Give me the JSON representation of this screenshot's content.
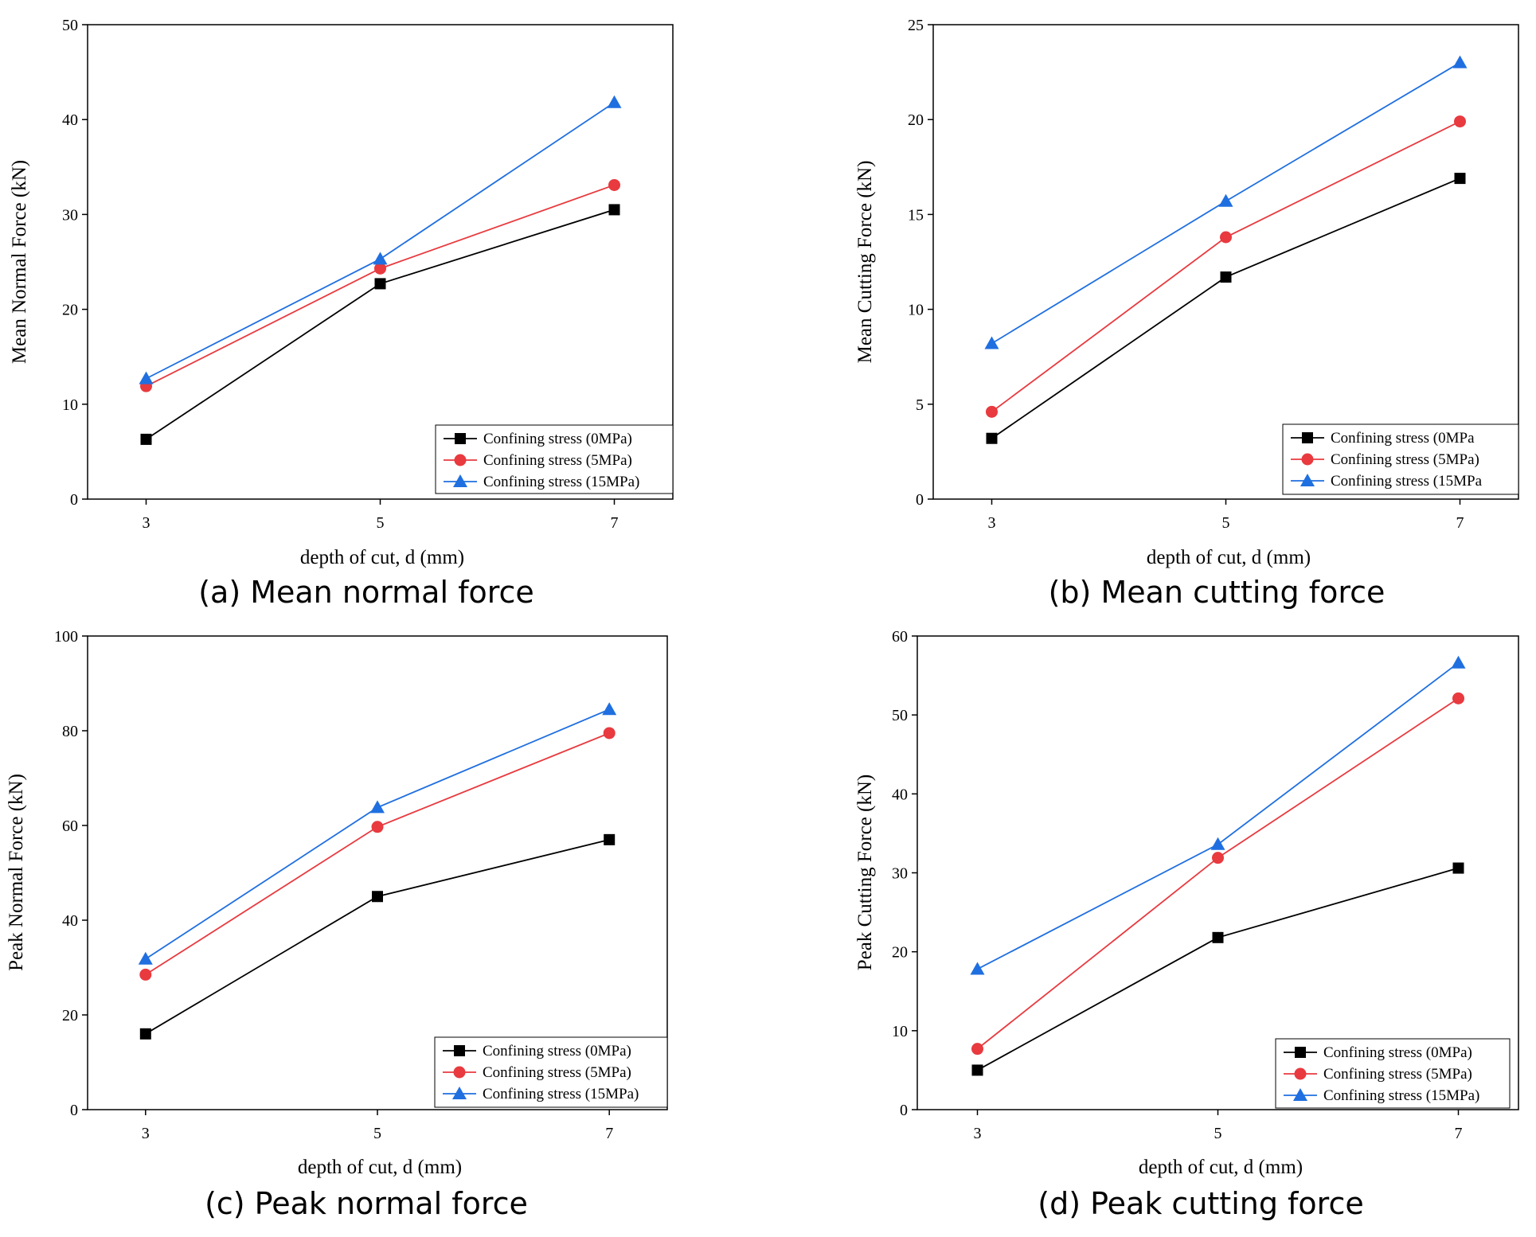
{
  "colors": {
    "black": "#000000",
    "red": "#e83a3f",
    "blue": "#1f6fe0"
  },
  "chart_data": [
    {
      "type": "line",
      "caption": "(a) Mean normal force",
      "xlabel": "depth of cut, d (mm)",
      "ylabel": "Mean Normal Force (kN)",
      "x": [
        3,
        5,
        7
      ],
      "xlim": [
        2.5,
        7.5
      ],
      "ylim": [
        0,
        50
      ],
      "yticks": [
        0,
        10,
        20,
        30,
        40,
        50
      ],
      "legend_position": "bottom-right",
      "series": [
        {
          "name": "Confining stress (0MPa)",
          "marker": "square",
          "color": "#000000",
          "values": [
            6.3,
            22.7,
            30.5
          ]
        },
        {
          "name": "Confining stress (5MPa)",
          "marker": "circle",
          "color": "#e83a3f",
          "values": [
            11.9,
            24.3,
            33.1
          ]
        },
        {
          "name": "Confining stress (15MPa)",
          "marker": "triangle",
          "color": "#1f6fe0",
          "values": [
            12.7,
            25.3,
            41.8
          ]
        }
      ]
    },
    {
      "type": "line",
      "caption": "(b) Mean cutting force",
      "xlabel": "depth of cut, d (mm)",
      "ylabel": "Mean Cutting Force (kN)",
      "x": [
        3,
        5,
        7
      ],
      "xlim": [
        2.5,
        7.5
      ],
      "ylim": [
        0,
        25
      ],
      "yticks": [
        0,
        5,
        10,
        15,
        20,
        25
      ],
      "legend_position": "bottom-right",
      "series": [
        {
          "name": "Confining stress (0MPa",
          "marker": "square",
          "color": "#000000",
          "values": [
            3.2,
            11.7,
            16.9
          ]
        },
        {
          "name": "Confining stress (5MPa)",
          "marker": "circle",
          "color": "#e83a3f",
          "values": [
            4.6,
            13.8,
            19.9
          ]
        },
        {
          "name": "Confining stress (15MPa",
          "marker": "triangle",
          "color": "#1f6fe0",
          "values": [
            8.2,
            15.7,
            23.0
          ]
        }
      ]
    },
    {
      "type": "line",
      "caption": "(c) Peak normal force",
      "xlabel": "depth of cut, d (mm)",
      "ylabel": "Peak Normal Force (kN)",
      "x": [
        3,
        5,
        7
      ],
      "xlim": [
        2.5,
        7.5
      ],
      "ylim": [
        0,
        100
      ],
      "yticks": [
        0,
        20,
        40,
        60,
        80,
        100
      ],
      "legend_position": "bottom-right",
      "series": [
        {
          "name": "Confining stress (0MPa)",
          "marker": "square",
          "color": "#000000",
          "values": [
            16.0,
            45.0,
            57.0
          ]
        },
        {
          "name": "Confining stress (5MPa)",
          "marker": "circle",
          "color": "#e83a3f",
          "values": [
            28.5,
            59.7,
            79.5
          ]
        },
        {
          "name": "Confining stress (15MPa)",
          "marker": "triangle",
          "color": "#1f6fe0",
          "values": [
            31.8,
            63.8,
            84.5
          ]
        }
      ]
    },
    {
      "type": "line",
      "caption": "(d) Peak cutting force",
      "xlabel": "depth of cut, d (mm)",
      "ylabel": "Peak Cutting Force (kN)",
      "x": [
        3,
        5,
        7
      ],
      "xlim": [
        2.5,
        7.5
      ],
      "ylim": [
        0,
        60
      ],
      "yticks": [
        0,
        10,
        20,
        30,
        40,
        50,
        60
      ],
      "legend_position": "bottom-right",
      "series": [
        {
          "name": "Confining stress (0MPa)",
          "marker": "square",
          "color": "#000000",
          "values": [
            5.0,
            21.8,
            30.6
          ]
        },
        {
          "name": "Confining stress (5MPa)",
          "marker": "circle",
          "color": "#e83a3f",
          "values": [
            7.7,
            31.9,
            52.1
          ]
        },
        {
          "name": "Confining stress (15MPa)",
          "marker": "triangle",
          "color": "#1f6fe0",
          "values": [
            17.8,
            33.6,
            56.6
          ]
        }
      ]
    }
  ]
}
